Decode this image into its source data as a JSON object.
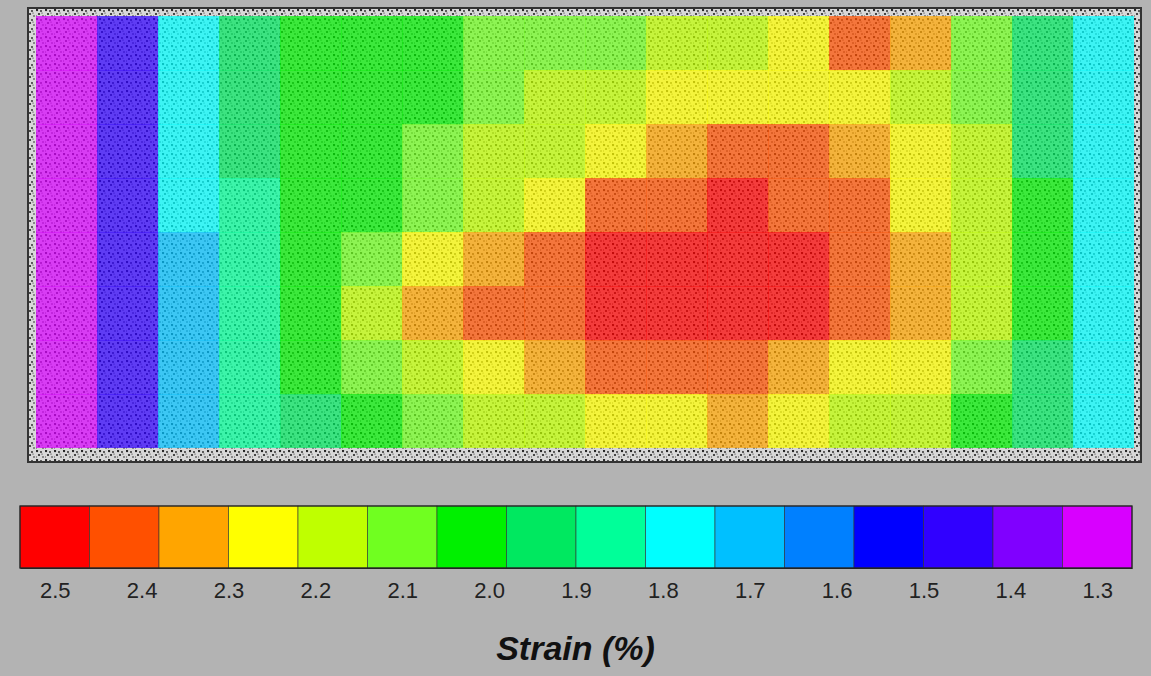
{
  "chart_data": {
    "type": "heatmap",
    "tick_labels": false,
    "cells": [
      [
        1.32,
        1.5,
        1.75,
        1.95,
        2.0,
        2.05,
        2.05,
        2.1,
        2.1,
        2.1,
        2.15,
        2.2,
        2.3,
        2.4,
        2.35,
        2.1,
        1.95,
        1.8
      ],
      [
        1.32,
        1.5,
        1.75,
        1.95,
        2.0,
        2.05,
        2.05,
        2.1,
        2.15,
        2.2,
        2.25,
        2.3,
        2.3,
        2.25,
        2.2,
        2.1,
        1.95,
        1.8
      ],
      [
        1.32,
        1.5,
        1.75,
        1.95,
        2.0,
        2.05,
        2.1,
        2.15,
        2.2,
        2.3,
        2.35,
        2.45,
        2.4,
        2.35,
        2.25,
        2.15,
        1.95,
        1.8
      ],
      [
        1.32,
        1.5,
        1.75,
        1.9,
        2.0,
        2.05,
        2.1,
        2.2,
        2.3,
        2.4,
        2.45,
        2.5,
        2.45,
        2.4,
        2.3,
        2.15,
        2.0,
        1.8
      ],
      [
        1.32,
        1.5,
        1.7,
        1.9,
        2.0,
        2.1,
        2.25,
        2.35,
        2.4,
        2.5,
        2.5,
        2.5,
        2.5,
        2.45,
        2.35,
        2.2,
        2.0,
        1.8
      ],
      [
        1.32,
        1.5,
        1.7,
        1.9,
        2.05,
        2.15,
        2.35,
        2.45,
        2.45,
        2.5,
        2.5,
        2.5,
        2.5,
        2.45,
        2.35,
        2.2,
        2.0,
        1.8
      ],
      [
        1.32,
        1.5,
        1.7,
        1.9,
        2.0,
        2.1,
        2.2,
        2.3,
        2.35,
        2.4,
        2.4,
        2.4,
        2.35,
        2.3,
        2.25,
        2.1,
        1.95,
        1.8
      ],
      [
        1.32,
        1.5,
        1.7,
        1.85,
        1.95,
        2.05,
        2.1,
        2.15,
        2.2,
        2.25,
        2.3,
        2.35,
        2.3,
        2.2,
        2.15,
        2.05,
        1.95,
        1.75
      ]
    ],
    "colorbar": {
      "label": "Strain (%)",
      "range": [
        2.54,
        1.26
      ],
      "ticks": [
        2.5,
        2.4,
        2.3,
        2.2,
        2.1,
        {
          "value": 2.0,
          "label": "2.0"
        },
        1.9,
        1.8,
        1.7,
        1.6,
        1.5,
        1.4,
        1.3
      ],
      "colors": [
        "#ff0000",
        "#ff5000",
        "#ffa500",
        "#ffff00",
        "#bfff00",
        "#70ff20",
        "#00f000",
        "#00e860",
        "#00ff99",
        "#00ffff",
        "#00c0ff",
        "#0080ff",
        "#0000ff",
        "#3000ff",
        "#8000ff",
        "#d800ff"
      ]
    }
  }
}
